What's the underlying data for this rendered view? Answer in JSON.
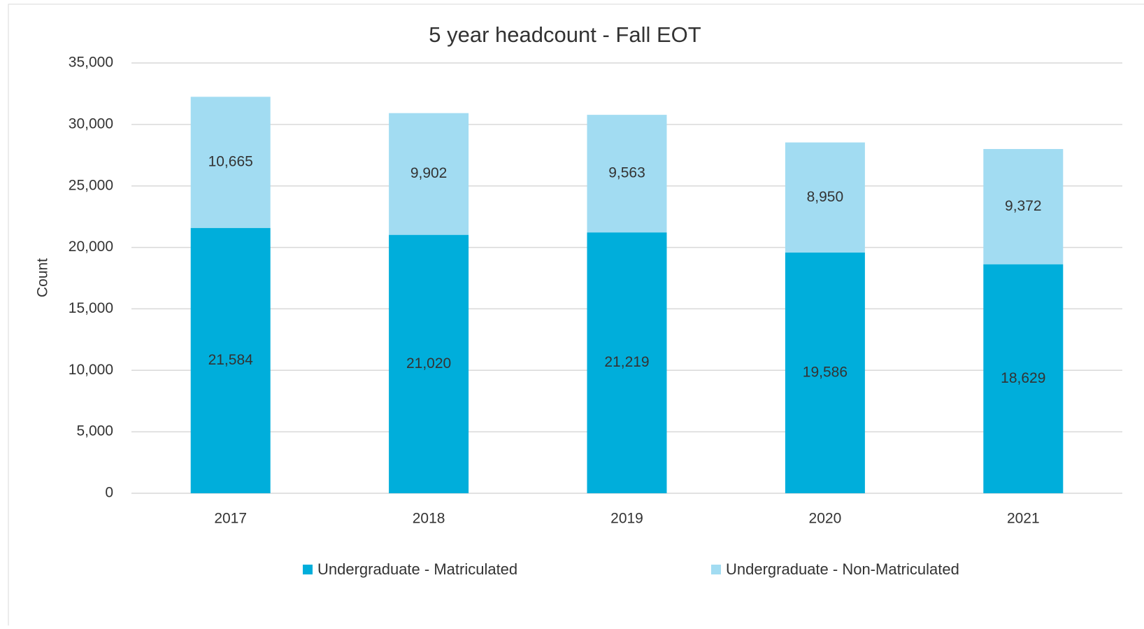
{
  "chart_data": {
    "type": "stacked_bar",
    "title": "5 year headcount - Fall EOT",
    "y_label": "Count",
    "categories": [
      "2017",
      "2018",
      "2019",
      "2020",
      "2021"
    ],
    "series": [
      {
        "name": "Undergraduate - Matriculated",
        "color": "#00aedb",
        "values": [
          21584,
          21020,
          21219,
          19586,
          18629
        ],
        "value_labels": [
          "21,584",
          "21,020",
          "21,219",
          "19,586",
          "18,629"
        ]
      },
      {
        "name": "Undergraduate - Non-Matriculated",
        "color": "#a2dcf2",
        "values": [
          10665,
          9902,
          9563,
          8950,
          9372
        ],
        "value_labels": [
          "10,665",
          "9,902",
          "9,563",
          "8,950",
          "9,372"
        ]
      }
    ],
    "ylim": [
      0,
      35000
    ],
    "yticks": [
      0,
      {
        "value": 5000,
        "label": "5,000"
      },
      {
        "value": 10000,
        "label": "10,000"
      },
      {
        "value": 15000,
        "label": "15,000"
      },
      {
        "value": 20000,
        "label": "20,000"
      },
      {
        "value": 25000,
        "label": "25,000"
      },
      {
        "value": 30000,
        "label": "30,000"
      },
      {
        "value": 35000,
        "label": "35,000"
      }
    ],
    "grid": true,
    "legend": "bottom"
  }
}
